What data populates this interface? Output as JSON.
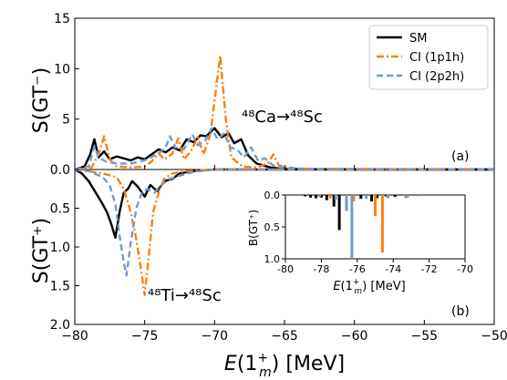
{
  "chart_data": [
    {
      "type": "line",
      "panel_label": "(a)",
      "ylabel": "S(GT⁻)",
      "ylim": [
        0,
        15
      ],
      "yticks": [
        "0.0",
        "5",
        "10",
        "15"
      ],
      "xlim": [
        -80,
        -50
      ],
      "annotation": "⁴⁸Ca→⁴⁸Sc",
      "series": [
        {
          "name": "SM",
          "color": "#000000",
          "dash": "solid",
          "points": [
            [
              -80,
              0
            ],
            [
              -79.3,
              0.3
            ],
            [
              -78.9,
              1.5
            ],
            [
              -78.6,
              3.0
            ],
            [
              -78.3,
              1.2
            ],
            [
              -77.9,
              1.8
            ],
            [
              -77.5,
              1.0
            ],
            [
              -77.0,
              1.3
            ],
            [
              -76.5,
              1.1
            ],
            [
              -76.0,
              0.9
            ],
            [
              -75.5,
              1.2
            ],
            [
              -75.0,
              1.0
            ],
            [
              -74.5,
              1.5
            ],
            [
              -74.0,
              2.0
            ],
            [
              -73.5,
              1.7
            ],
            [
              -73.0,
              2.2
            ],
            [
              -72.5,
              1.9
            ],
            [
              -72.0,
              3.0
            ],
            [
              -71.5,
              2.7
            ],
            [
              -71.0,
              3.4
            ],
            [
              -70.6,
              3.3
            ],
            [
              -70.0,
              4.1
            ],
            [
              -69.5,
              3.2
            ],
            [
              -69.0,
              3.6
            ],
            [
              -68.6,
              2.6
            ],
            [
              -68.1,
              3.0
            ],
            [
              -67.6,
              1.4
            ],
            [
              -67.0,
              0.6
            ],
            [
              -66.0,
              0.2
            ],
            [
              -65.0,
              0.05
            ],
            [
              -60,
              0
            ],
            [
              -50,
              0
            ]
          ]
        },
        {
          "name": "CI (1p1h)",
          "color": "#ff7f0e",
          "dash": "dashdot",
          "points": [
            [
              -80,
              0
            ],
            [
              -78.8,
              0.2
            ],
            [
              -78.3,
              1.5
            ],
            [
              -77.9,
              3.3
            ],
            [
              -77.5,
              1.0
            ],
            [
              -77.0,
              0.3
            ],
            [
              -76.0,
              0.2
            ],
            [
              -75.0,
              0.3
            ],
            [
              -74.5,
              0.8
            ],
            [
              -74.0,
              1.6
            ],
            [
              -73.6,
              1.0
            ],
            [
              -73.0,
              1.6
            ],
            [
              -72.6,
              3.1
            ],
            [
              -72.2,
              1.0
            ],
            [
              -71.7,
              1.8
            ],
            [
              -71.2,
              3.2
            ],
            [
              -70.8,
              1.5
            ],
            [
              -70.3,
              3.5
            ],
            [
              -69.9,
              8.0
            ],
            [
              -69.6,
              11.3
            ],
            [
              -69.2,
              5.0
            ],
            [
              -68.8,
              1.2
            ],
            [
              -68.0,
              0.3
            ],
            [
              -67.0,
              0.2
            ],
            [
              -66.2,
              0.6
            ],
            [
              -65.8,
              1.5
            ],
            [
              -65.4,
              0.4
            ],
            [
              -64.0,
              0.05
            ],
            [
              -50,
              0
            ]
          ]
        },
        {
          "name": "CI (2p2h)",
          "color": "#6f9bd1",
          "dash": "dashed",
          "points": [
            [
              -80,
              0
            ],
            [
              -79.0,
              0.3
            ],
            [
              -78.6,
              2.3
            ],
            [
              -78.3,
              1.2
            ],
            [
              -77.8,
              0.8
            ],
            [
              -77.0,
              0.6
            ],
            [
              -76.0,
              0.6
            ],
            [
              -75.0,
              0.9
            ],
            [
              -74.0,
              1.6
            ],
            [
              -73.5,
              2.2
            ],
            [
              -73.2,
              3.3
            ],
            [
              -72.8,
              2.2
            ],
            [
              -72.2,
              2.0
            ],
            [
              -71.6,
              3.5
            ],
            [
              -71.2,
              2.4
            ],
            [
              -70.7,
              2.8
            ],
            [
              -70.2,
              4.1
            ],
            [
              -69.8,
              3.0
            ],
            [
              -69.3,
              3.6
            ],
            [
              -68.9,
              2.2
            ],
            [
              -68.4,
              2.0
            ],
            [
              -67.9,
              1.2
            ],
            [
              -67.4,
              2.2
            ],
            [
              -66.9,
              0.9
            ],
            [
              -66.4,
              1.1
            ],
            [
              -65.8,
              0.4
            ],
            [
              -65.0,
              0.15
            ],
            [
              -63.0,
              0.05
            ],
            [
              -50,
              0
            ]
          ]
        }
      ]
    },
    {
      "type": "line",
      "panel_label": "(b)",
      "ylabel": "S(GT⁺)",
      "ylim": [
        2.0,
        0
      ],
      "yticks": [
        "0.0",
        "0.5",
        "1.0",
        "1.5",
        "2.0"
      ],
      "xlim": [
        -80,
        -50
      ],
      "xticks": [
        "−80",
        "−75",
        "−70",
        "−65",
        "−60",
        "−55",
        "−50"
      ],
      "annotation": "⁴⁸Ti→⁴⁸Sc",
      "series": [
        {
          "name": "SM",
          "color": "#000000",
          "dash": "solid",
          "points": [
            [
              -80,
              0
            ],
            [
              -79.5,
              0.05
            ],
            [
              -79.0,
              0.15
            ],
            [
              -78.5,
              0.3
            ],
            [
              -78.0,
              0.45
            ],
            [
              -77.7,
              0.55
            ],
            [
              -77.4,
              0.7
            ],
            [
              -77.1,
              0.88
            ],
            [
              -76.8,
              0.55
            ],
            [
              -76.5,
              0.3
            ],
            [
              -76.2,
              0.25
            ],
            [
              -75.9,
              0.15
            ],
            [
              -75.5,
              0.22
            ],
            [
              -75.0,
              0.35
            ],
            [
              -74.6,
              0.2
            ],
            [
              -74.1,
              0.28
            ],
            [
              -73.6,
              0.15
            ],
            [
              -73.0,
              0.12
            ],
            [
              -72.5,
              0.05
            ],
            [
              -71.5,
              0.02
            ],
            [
              -70,
              0
            ],
            [
              -50,
              0
            ]
          ]
        },
        {
          "name": "CI (1p1h)",
          "color": "#ff7f0e",
          "dash": "dashdot",
          "points": [
            [
              -80,
              0
            ],
            [
              -78.0,
              0.05
            ],
            [
              -77.0,
              0.1
            ],
            [
              -76.5,
              0.25
            ],
            [
              -76.0,
              0.55
            ],
            [
              -75.6,
              0.9
            ],
            [
              -75.3,
              1.25
            ],
            [
              -75.0,
              1.62
            ],
            [
              -74.7,
              1.1
            ],
            [
              -74.4,
              0.55
            ],
            [
              -74.0,
              0.3
            ],
            [
              -73.6,
              0.12
            ],
            [
              -73.0,
              0.05
            ],
            [
              -72.0,
              0.02
            ],
            [
              -70,
              0
            ],
            [
              -50,
              0
            ]
          ]
        },
        {
          "name": "CI (2p2h)",
          "color": "#6f9bd1",
          "dash": "dashed",
          "points": [
            [
              -80,
              0
            ],
            [
              -79.0,
              0.02
            ],
            [
              -78.0,
              0.1
            ],
            [
              -77.5,
              0.2
            ],
            [
              -77.1,
              0.45
            ],
            [
              -76.8,
              0.85
            ],
            [
              -76.5,
              1.2
            ],
            [
              -76.3,
              1.37
            ],
            [
              -76.0,
              0.95
            ],
            [
              -75.6,
              0.5
            ],
            [
              -75.2,
              0.3
            ],
            [
              -74.8,
              0.25
            ],
            [
              -74.3,
              0.3
            ],
            [
              -73.8,
              0.2
            ],
            [
              -73.2,
              0.12
            ],
            [
              -72.5,
              0.08
            ],
            [
              -71.5,
              0.03
            ],
            [
              -70,
              0
            ],
            [
              -50,
              0
            ]
          ]
        }
      ]
    },
    {
      "type": "bar",
      "inset": true,
      "ylabel": "B(GT⁺)",
      "ylim": [
        1.0,
        0
      ],
      "yticks": [
        "0.0",
        "0.5",
        "1.0"
      ],
      "xlim": [
        -80,
        -70
      ],
      "xticks": [
        "-80",
        "-78",
        "-76",
        "-74",
        "-72",
        "-70"
      ],
      "series": [
        {
          "name": "SM",
          "color": "#000000",
          "bars": [
            [
              -78.9,
              0.02
            ],
            [
              -78.6,
              0.04
            ],
            [
              -78.3,
              0.05
            ],
            [
              -78.0,
              0.04
            ],
            [
              -77.7,
              0.08
            ],
            [
              -77.3,
              0.18
            ],
            [
              -77.0,
              0.55
            ],
            [
              -76.6,
              0.15
            ],
            [
              -75.8,
              0.06
            ],
            [
              -75.2,
              0.1
            ],
            [
              -74.9,
              0.05
            ],
            [
              -74.4,
              0.02
            ],
            [
              -73.9,
              0.03
            ]
          ]
        },
        {
          "name": "CI (1p1h)",
          "color": "#ff7f0e",
          "bars": [
            [
              -77.5,
              0.05
            ],
            [
              -76.2,
              0.1
            ],
            [
              -75.0,
              0.33
            ],
            [
              -74.6,
              0.9
            ],
            [
              -73.3,
              0.05
            ]
          ]
        },
        {
          "name": "CI (2p2h)",
          "color": "#6f9bd1",
          "bars": [
            [
              -78.1,
              0.03
            ],
            [
              -77.2,
              0.07
            ],
            [
              -76.6,
              0.25
            ],
            [
              -76.3,
              1.0
            ],
            [
              -75.5,
              0.06
            ],
            [
              -74.3,
              0.05
            ],
            [
              -73.2,
              0.04
            ],
            [
              -72.6,
              0.02
            ]
          ]
        }
      ]
    }
  ],
  "xlabel_main": "E(1",
  "xlabel_sub": "m",
  "xlabel_sup": "+",
  "xlabel_unit": ") [MeV]",
  "inset_xlabel_main": "E(1",
  "inset_xlabel_sub": "m",
  "inset_xlabel_sup": "+",
  "inset_xlabel_unit": ") [MeV]",
  "legend": {
    "placement": "top-right",
    "entries": [
      "SM",
      "CI (1p1h)",
      "CI (2p2h)"
    ]
  }
}
